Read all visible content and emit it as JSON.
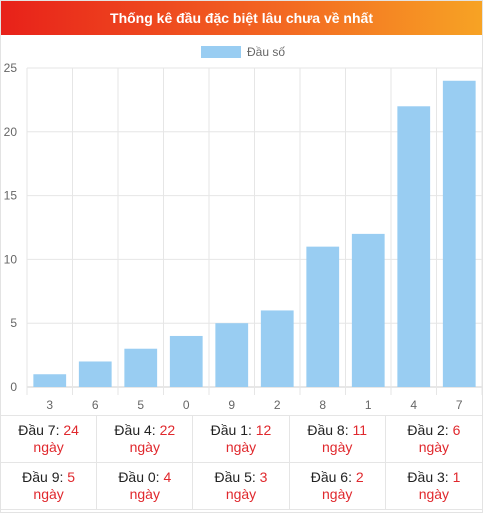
{
  "header": {
    "title": "Thống kê đầu đặc biệt lâu chưa về nhất"
  },
  "colors": {
    "bar": "#99cdf2",
    "header_start": "#e8211a",
    "header_end": "#f7a324",
    "value": "#e0282d"
  },
  "chart_data": {
    "type": "bar",
    "categories": [
      "3",
      "6",
      "5",
      "0",
      "9",
      "2",
      "8",
      "1",
      "4",
      "7"
    ],
    "series": [
      {
        "name": "Đầu số",
        "values": [
          1,
          2,
          3,
          4,
          5,
          6,
          11,
          12,
          22,
          24
        ]
      }
    ],
    "ylim": [
      0,
      25
    ],
    "yticks": [
      0,
      5,
      10,
      15,
      20,
      25
    ],
    "grid": true,
    "legend": "top-center"
  },
  "stats": [
    {
      "label": "Đầu 7: ",
      "value": "24",
      "unit": "ngày"
    },
    {
      "label": "Đầu 4: ",
      "value": "22",
      "unit": "ngày"
    },
    {
      "label": "Đầu 1: ",
      "value": "12",
      "unit": "ngày"
    },
    {
      "label": "Đầu 8: ",
      "value": "11",
      "unit": "ngày"
    },
    {
      "label": "Đầu 2: ",
      "value": "6",
      "unit": "ngày"
    },
    {
      "label": "Đầu 9: ",
      "value": "5",
      "unit": "ngày"
    },
    {
      "label": "Đầu 0: ",
      "value": "4",
      "unit": "ngày"
    },
    {
      "label": "Đầu 5: ",
      "value": "3",
      "unit": "ngày"
    },
    {
      "label": "Đầu 6: ",
      "value": "2",
      "unit": "ngày"
    },
    {
      "label": "Đầu 3: ",
      "value": "1",
      "unit": "ngày"
    }
  ]
}
